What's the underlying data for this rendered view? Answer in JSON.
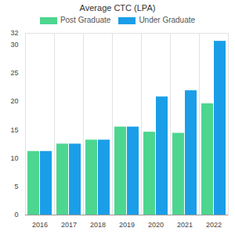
{
  "chart_data": {
    "type": "bar",
    "title": "Average CTC (LPA)",
    "categories": [
      "2016",
      "2017",
      "2018",
      "2019",
      "2020",
      "2021",
      "2022"
    ],
    "series": [
      {
        "name": "Post Graduate",
        "color": "#4cd68f",
        "values": [
          11.2,
          12.5,
          13.2,
          15.5,
          14.6,
          14.4,
          19.6
        ]
      },
      {
        "name": "Under Graduate",
        "color": "#1a9ee8",
        "values": [
          11.2,
          12.5,
          13.2,
          15.5,
          20.8,
          21.9,
          30.6
        ]
      }
    ],
    "ylim": [
      0,
      32
    ],
    "yticks": [
      0,
      5,
      10,
      15,
      20,
      25,
      30,
      32
    ],
    "grid": true,
    "legend": "top"
  }
}
